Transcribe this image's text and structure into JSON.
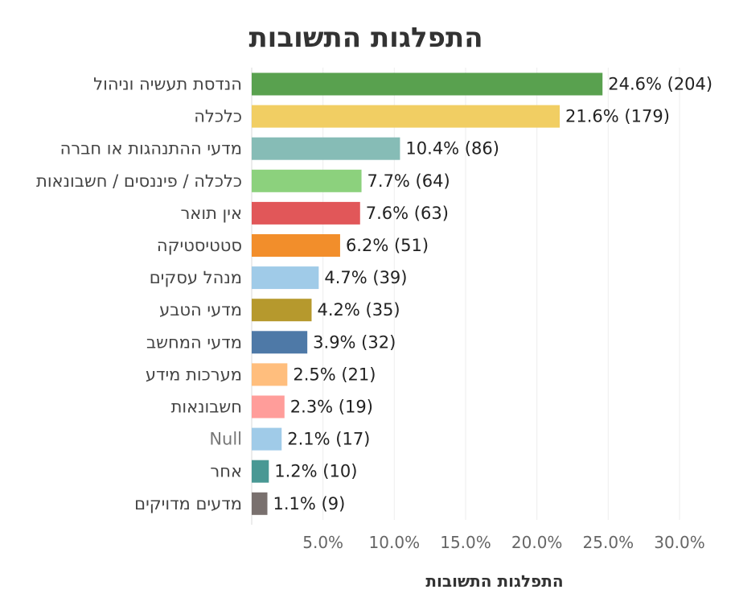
{
  "chart_data": {
    "type": "bar",
    "orientation": "horizontal",
    "title": "התפלגות התשובות",
    "xlabel": "התפלגות התשובות",
    "ylabel": "",
    "xlim": [
      0,
      0.34
    ],
    "xticks": [
      0.05,
      0.1,
      0.15,
      0.2,
      0.25,
      0.3
    ],
    "xtick_labels": [
      "5.0%",
      "10.0%",
      "15.0%",
      "20.0%",
      "25.0%",
      "30.0%"
    ],
    "grid": true,
    "legend": "none",
    "categories": [
      "הנדסת תעשיה וניהול",
      "כלכלה",
      "מדעי ההתנהגות או חברה",
      "כלכלה / פיננסים / חשבונאות",
      "אין תואר",
      "סטטיסטיקה",
      "מנהל עסקים",
      "מדעי הטבע",
      "מדעי המחשב",
      "מערכות מידע",
      "חשבונאות",
      "Null",
      "אחר",
      "מדעים מדויקים"
    ],
    "values": [
      0.246,
      0.216,
      0.104,
      0.077,
      0.076,
      0.062,
      0.047,
      0.042,
      0.039,
      0.025,
      0.023,
      0.021,
      0.012,
      0.011
    ],
    "counts": [
      204,
      179,
      86,
      64,
      63,
      51,
      39,
      35,
      32,
      21,
      19,
      17,
      10,
      9
    ],
    "data_labels": [
      "24.6% (204)",
      "21.6% (179)",
      "10.4% (86)",
      "7.7% (64)",
      "7.6% (63)",
      "6.2% (51)",
      "4.7% (39)",
      "4.2% (35)",
      "3.9% (32)",
      "2.5% (21)",
      "2.3% (19)",
      "2.1% (17)",
      "1.2% (10)",
      "1.1% (9)"
    ],
    "colors": [
      "#59a14f",
      "#f1ce63",
      "#86bcb6",
      "#8cd17d",
      "#e15759",
      "#f28e2b",
      "#a0cbe8",
      "#b6992d",
      "#4e79a7",
      "#ffbe7d",
      "#ff9d9a",
      "#a0cbe8",
      "#499894",
      "#79706e"
    ]
  }
}
